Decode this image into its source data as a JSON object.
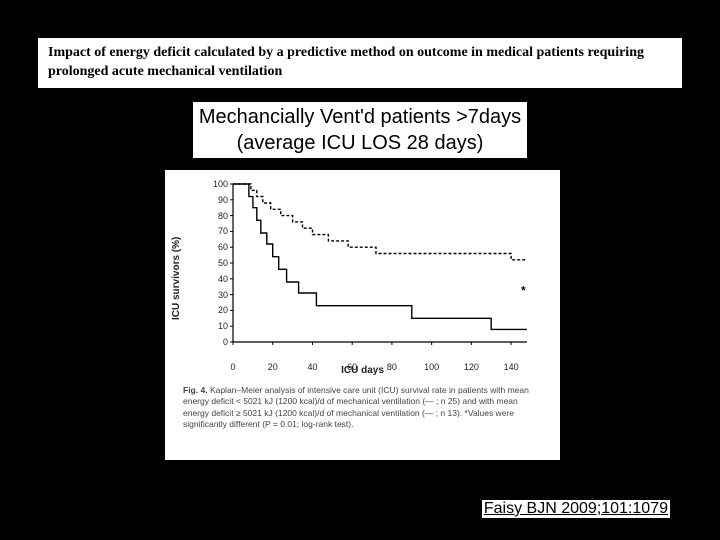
{
  "title": "Impact of energy deficit calculated by a predictive method on outcome in medical patients requiring prolonged acute mechanical ventilation",
  "subtitle_line1": "Mechancially Vent'd patients >7days",
  "subtitle_line2": "(average ICU LOS 28 days)",
  "citation": "Faisy BJN 2009;101:1079",
  "chart": {
    "type": "line",
    "subtype": "kaplan-meier-step",
    "y_label": "ICU survivors (%)",
    "x_label": "ICU days",
    "x_lim": [
      0,
      148
    ],
    "y_lim": [
      0,
      100
    ],
    "x_ticks": [
      0,
      20,
      40,
      60,
      80,
      100,
      120,
      140
    ],
    "y_ticks": [
      0,
      10,
      20,
      30,
      40,
      50,
      60,
      70,
      80,
      90,
      100
    ],
    "axis_color": "#000000",
    "line_width": 1.4,
    "plot_bg": "#ffffff",
    "series": [
      {
        "name": "high-deficit",
        "label": "mean energy deficit ≥ 5021 kJ (1200 kcal)/d (n=13)",
        "color": "#000000",
        "dash": "none",
        "points": [
          [
            0,
            100
          ],
          [
            8,
            100
          ],
          [
            8,
            92
          ],
          [
            10,
            92
          ],
          [
            10,
            85
          ],
          [
            12,
            85
          ],
          [
            12,
            77
          ],
          [
            14,
            77
          ],
          [
            14,
            69
          ],
          [
            17,
            69
          ],
          [
            17,
            62
          ],
          [
            20,
            62
          ],
          [
            20,
            54
          ],
          [
            23,
            54
          ],
          [
            23,
            46
          ],
          [
            27,
            46
          ],
          [
            27,
            38
          ],
          [
            33,
            38
          ],
          [
            33,
            31
          ],
          [
            42,
            31
          ],
          [
            42,
            23
          ],
          [
            90,
            23
          ],
          [
            90,
            15
          ],
          [
            130,
            15
          ],
          [
            130,
            8
          ],
          [
            148,
            8
          ]
        ]
      },
      {
        "name": "low-deficit",
        "label": "mean energy deficit < 5021 kJ (1200 kcal)/d (n=25)",
        "color": "#000000",
        "dash": "3,2",
        "points": [
          [
            0,
            100
          ],
          [
            9,
            100
          ],
          [
            9,
            96
          ],
          [
            12,
            96
          ],
          [
            12,
            92
          ],
          [
            15,
            92
          ],
          [
            15,
            88
          ],
          [
            19,
            88
          ],
          [
            19,
            84
          ],
          [
            24,
            84
          ],
          [
            24,
            80
          ],
          [
            30,
            80
          ],
          [
            30,
            76
          ],
          [
            35,
            76
          ],
          [
            35,
            72
          ],
          [
            40,
            72
          ],
          [
            40,
            68
          ],
          [
            48,
            68
          ],
          [
            48,
            64
          ],
          [
            58,
            64
          ],
          [
            58,
            60
          ],
          [
            72,
            60
          ],
          [
            72,
            56
          ],
          [
            140,
            56
          ],
          [
            140,
            52
          ],
          [
            148,
            52
          ]
        ]
      }
    ],
    "star_pos": [
      148,
      30
    ]
  },
  "caption": {
    "label": "Fig. 4.",
    "text": "Kaplan–Meier analysis of intensive care unit (ICU) survival rate in patients with mean energy deficit < 5021 kJ (1200 kcal)/d of mechanical ventilation (— ; n 25) and with mean energy deficit ≥ 5021 kJ (1200 kcal)/d of mechanical ventilation (— ; n 13). *Values were significantly different (P = 0.01; log-rank test)."
  }
}
